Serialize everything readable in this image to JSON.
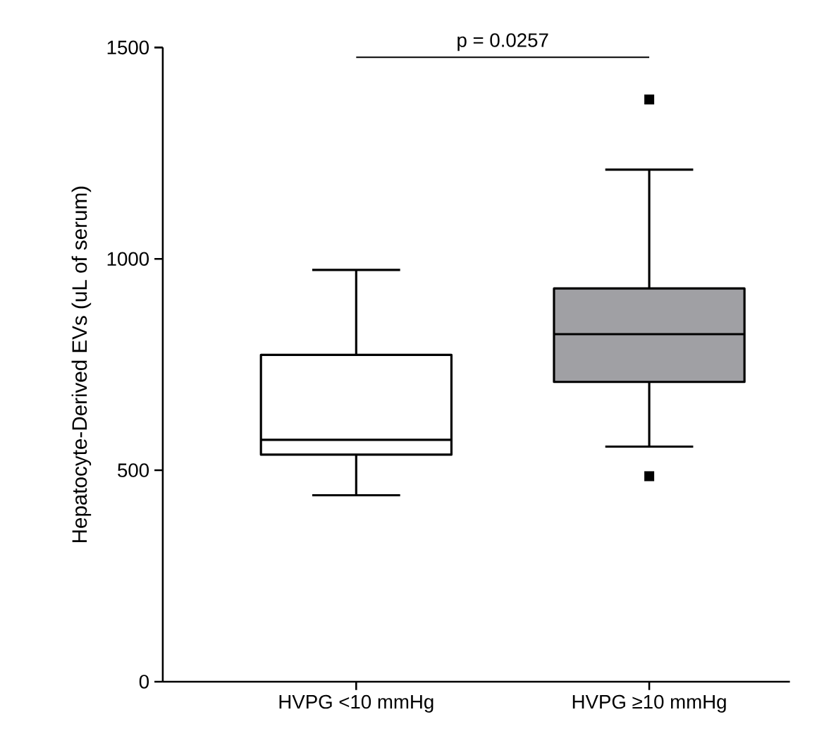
{
  "chart_data": {
    "type": "box",
    "categories": [
      "HVPG <10 mmHg",
      "HVPG ≥10 mmHg"
    ],
    "boxes": [
      {
        "low": 441,
        "q1": 537,
        "median": 572,
        "q3": 773,
        "high": 974
      },
      {
        "low": 556,
        "q1": 709,
        "median": 822,
        "q3": 930,
        "high": 1211,
        "outliers": [
          1377,
          486
        ]
      }
    ],
    "colors": [
      "#ffffff",
      "#a0a0a4"
    ],
    "ylabel": "Hepatocyte-Derived EVs  (uL of serum)",
    "ylim": [
      0,
      1500
    ],
    "yticks": [
      0,
      500,
      1000,
      1500
    ],
    "marker": "square",
    "annotations": [
      "p = 0.0257"
    ]
  }
}
